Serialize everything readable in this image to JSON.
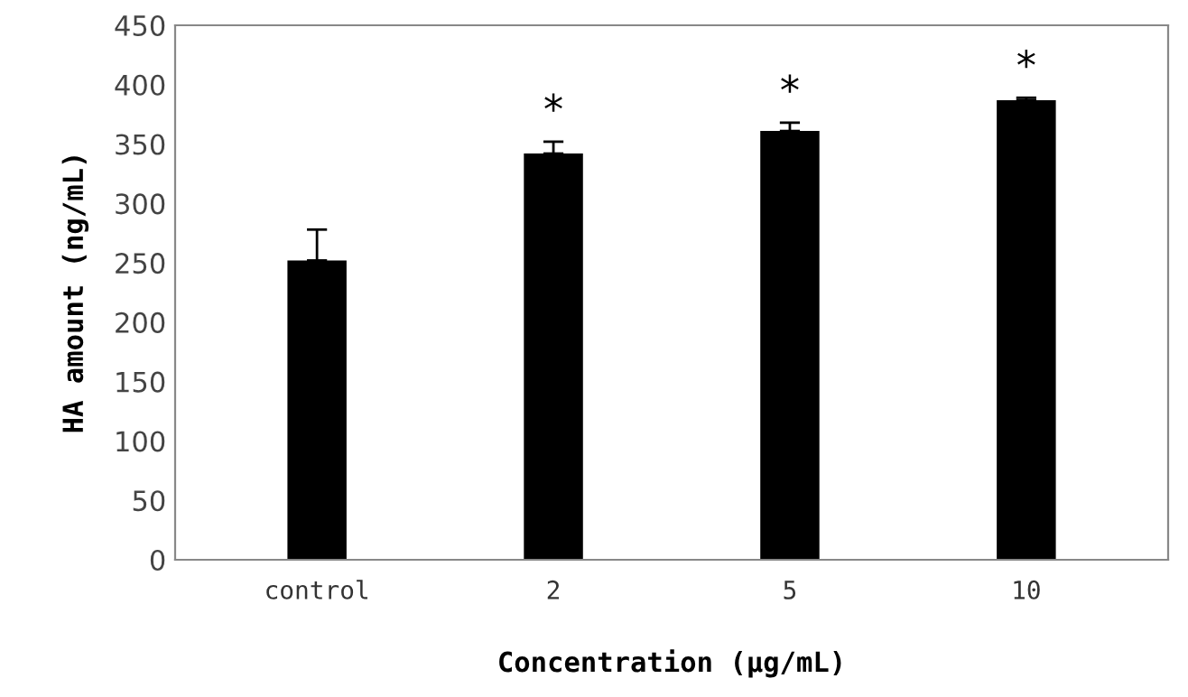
{
  "chart_data": {
    "type": "bar",
    "xlabel": "Concentration (μg/mL)",
    "ylabel": "HA amount (ng/mL)",
    "categories": [
      "control",
      "2",
      "5",
      "10"
    ],
    "values": [
      252,
      342,
      361,
      387
    ],
    "errors": [
      26,
      10,
      7,
      2
    ],
    "color": "#000000",
    "ylim": [
      0,
      450
    ],
    "yticks": [
      0,
      50,
      100,
      150,
      200,
      250,
      300,
      350,
      400,
      450
    ],
    "grid": false,
    "legend": false,
    "annotations": [
      {
        "text": "*",
        "x": "2",
        "y": 352
      },
      {
        "text": "*",
        "x": "5",
        "y": 368
      },
      {
        "text": "*",
        "x": "10",
        "y": 389
      }
    ]
  }
}
